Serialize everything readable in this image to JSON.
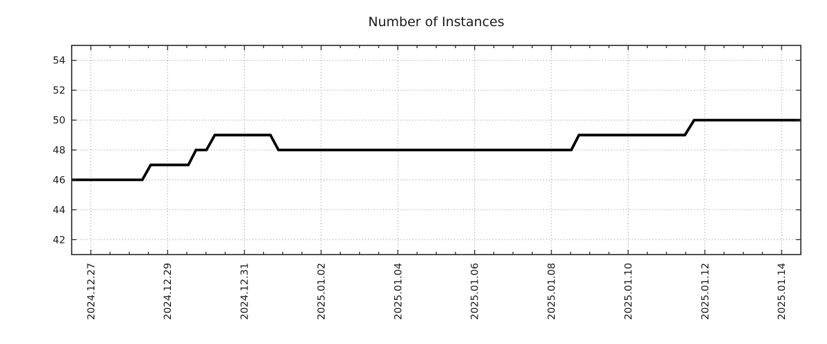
{
  "colors": {
    "background": "#ffffff",
    "line": "#000000",
    "grid": "#a8a8a8",
    "frame": "#262626",
    "text": "#1a1a1a"
  },
  "chart_data": {
    "type": "line",
    "subtype": "step-with-short-ramps",
    "title": "Number of Instances",
    "xlabel": "",
    "ylabel": "",
    "grid": true,
    "legend": false,
    "x_axis": {
      "start": "2024-12-26 12:00",
      "end": "2025-01-14 12:00",
      "span_days": 19,
      "major_tick_every_days": 2,
      "minor_tick_every_days": 0.5,
      "first_major_tick_offset_days": 0.5,
      "major_tick_labels": [
        "2024.12.27",
        "2024.12.29",
        "2024.12.31",
        "2025.01.02",
        "2025.01.04",
        "2025.01.06",
        "2025.01.08",
        "2025.01.10",
        "2025.01.12",
        "2025.01.14"
      ]
    },
    "y_axis": {
      "min": 41,
      "max": 55,
      "ticks": [
        42,
        44,
        46,
        48,
        50,
        52,
        54
      ]
    },
    "points": [
      {
        "t": 0.0,
        "date": "2024-12-26 12:00",
        "value": 46
      },
      {
        "t": 1.84,
        "date": "2024-12-28 08:15",
        "value": 46
      },
      {
        "t": 2.06,
        "date": "2024-12-28 13:30",
        "value": 47
      },
      {
        "t": 3.04,
        "date": "2024-12-29 13:00",
        "value": 47
      },
      {
        "t": 3.24,
        "date": "2024-12-29 17:45",
        "value": 48
      },
      {
        "t": 3.51,
        "date": "2024-12-30 00:15",
        "value": 48
      },
      {
        "t": 3.73,
        "date": "2024-12-30 05:30",
        "value": 49
      },
      {
        "t": 5.18,
        "date": "2024-12-31 16:20",
        "value": 49
      },
      {
        "t": 5.39,
        "date": "2024-12-31 21:20",
        "value": 48
      },
      {
        "t": 13.02,
        "date": "2025-01-08 12:30",
        "value": 48
      },
      {
        "t": 13.22,
        "date": "2025-01-08 17:15",
        "value": 49
      },
      {
        "t": 15.98,
        "date": "2025-01-11 23:30",
        "value": 49
      },
      {
        "t": 16.22,
        "date": "2025-01-12 05:15",
        "value": 50
      },
      {
        "t": 19.0,
        "date": "2025-01-14 12:00",
        "value": 50
      }
    ]
  }
}
